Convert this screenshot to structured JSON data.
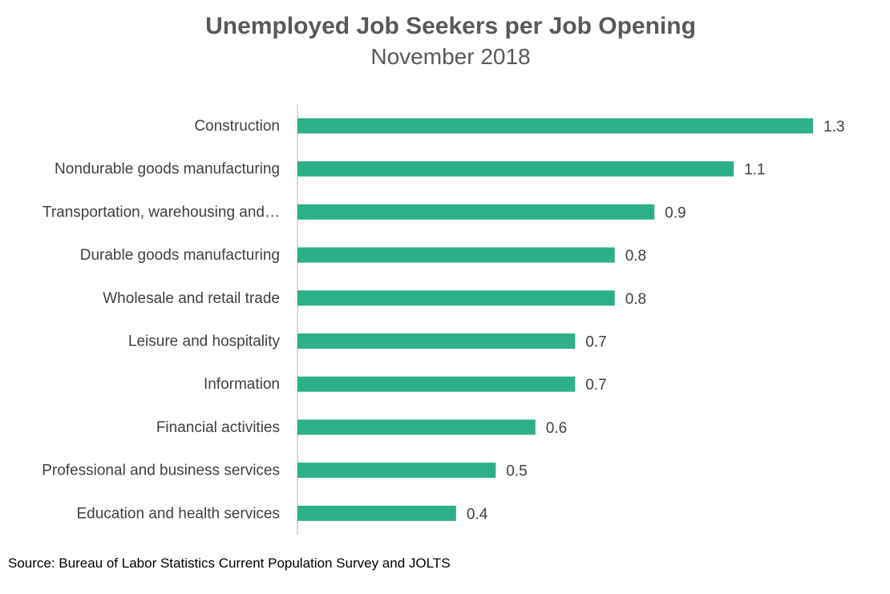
{
  "chart_data": {
    "type": "bar",
    "orientation": "horizontal",
    "title": "Unemployed Job Seekers per Job Opening",
    "subtitle": "November 2018",
    "categories": [
      "Construction",
      "Nondurable goods manufacturing",
      "Transportation, warehousing and…",
      "Durable goods manufacturing",
      "Wholesale and retail trade",
      "Leisure and hospitality",
      "Information",
      "Financial activities",
      "Professional and business services",
      "Education and health services"
    ],
    "values": [
      1.3,
      1.1,
      0.9,
      0.8,
      0.8,
      0.7,
      0.7,
      0.6,
      0.5,
      0.4
    ],
    "value_labels": [
      "1.3",
      "1.1",
      "0.9",
      "0.8",
      "0.8",
      "0.7",
      "0.7",
      "0.6",
      "0.5",
      "0.4"
    ],
    "xlim": [
      0,
      1.35
    ],
    "grid": false,
    "legend": "none",
    "bar_color": "#2db089",
    "axis_color": "#d9d9d9",
    "source": "Source: Bureau of Labor Statistics Current Population Survey and JOLTS"
  }
}
